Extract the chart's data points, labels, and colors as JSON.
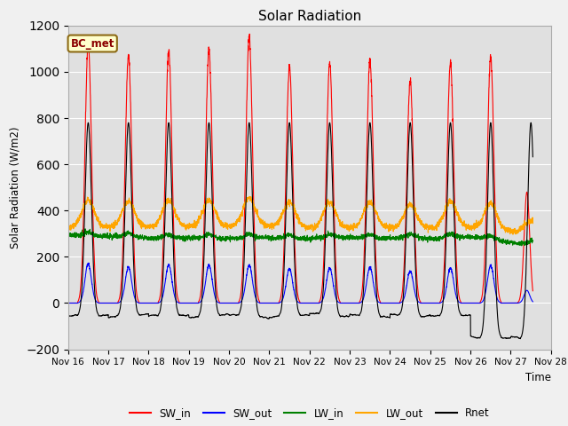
{
  "title": "Solar Radiation",
  "ylabel": "Solar Radiation (W/m2)",
  "xlabel": "Time",
  "annotation": "BC_met",
  "ylim": [
    -200,
    1200
  ],
  "legend_entries": [
    "SW_in",
    "SW_out",
    "LW_in",
    "LW_out",
    "Rnet"
  ],
  "line_colors": [
    "red",
    "blue",
    "green",
    "orange",
    "black"
  ],
  "x_tick_labels": [
    "Nov 16",
    "Nov 17",
    "Nov 18",
    "Nov 19",
    "Nov 20",
    "Nov 21",
    "Nov 22",
    "Nov 23",
    "Nov 24",
    "Nov 25",
    "Nov 26",
    "Nov 27",
    "Nov 28"
  ],
  "n_days": 12,
  "pts_per_day": 288,
  "sw_in_peaks": [
    1120,
    1065,
    1090,
    1090,
    1150,
    1020,
    1040,
    1050,
    960,
    1040,
    1065,
    480
  ],
  "sw_out_peaks": [
    170,
    155,
    165,
    165,
    165,
    148,
    152,
    155,
    138,
    152,
    162,
    55
  ],
  "lw_in_base": 290,
  "lw_out_base": 330,
  "rnet_day_peak": 780,
  "rnet_night_base": -55,
  "rnet_last_night": -150,
  "figsize": [
    6.4,
    4.8
  ],
  "dpi": 100
}
